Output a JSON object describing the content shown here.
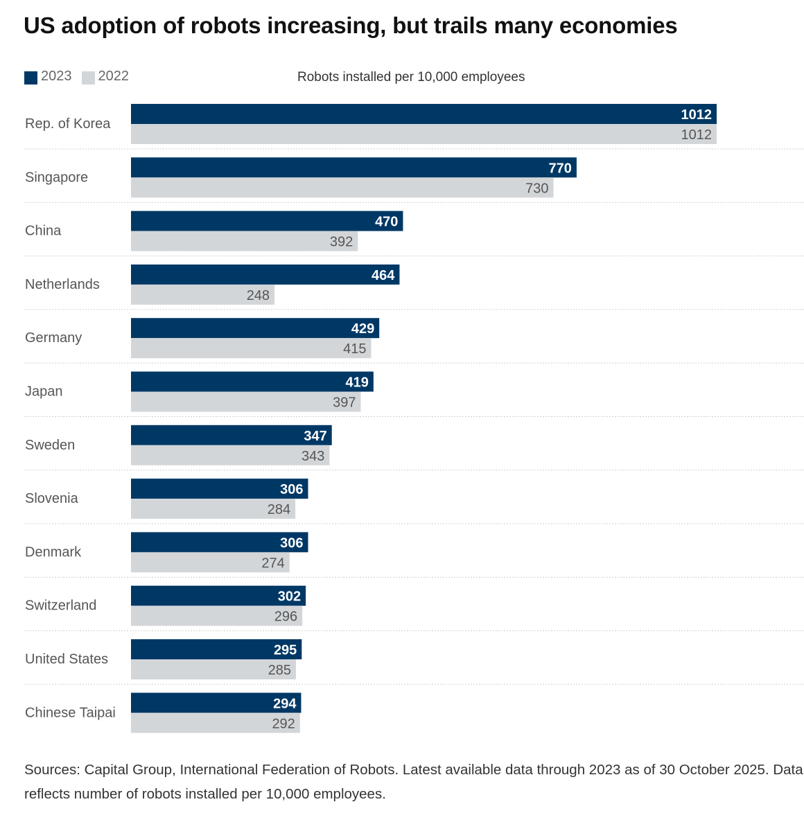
{
  "colors": {
    "y2023": "#003865",
    "y2022": "#d3d6d9",
    "separator": "#cfcfcf"
  },
  "chart_data": {
    "type": "bar",
    "orientation": "horizontal",
    "title": "US adoption of robots increasing, but trails many economies",
    "subtitle": "Robots installed per 10,000 employees",
    "xlabel": "Robots installed per 10,000 employees",
    "ylabel": "",
    "legend_position": "top-left",
    "grid": false,
    "xlim": [
      0,
      1012
    ],
    "categories": [
      "Rep. of Korea",
      "Singapore",
      "China",
      "Netherlands",
      "Germany",
      "Japan",
      "Sweden",
      "Slovenia",
      "Denmark",
      "Switzerland",
      "United States",
      "Chinese Taipai"
    ],
    "series": [
      {
        "name": "2023",
        "values": [
          1012,
          770,
          470,
          464,
          429,
          419,
          347,
          306,
          306,
          302,
          295,
          294
        ]
      },
      {
        "name": "2022",
        "values": [
          1012,
          730,
          392,
          248,
          415,
          397,
          343,
          284,
          274,
          296,
          285,
          292
        ]
      }
    ]
  },
  "legend": [
    {
      "label": "2023"
    },
    {
      "label": "2022"
    }
  ],
  "footer": {
    "sources": "Sources: Capital Group, International Federation of Robots. Latest available data through 2023 as of 30 October 2025. Data reflects number of robots installed per 10,000 employees."
  }
}
